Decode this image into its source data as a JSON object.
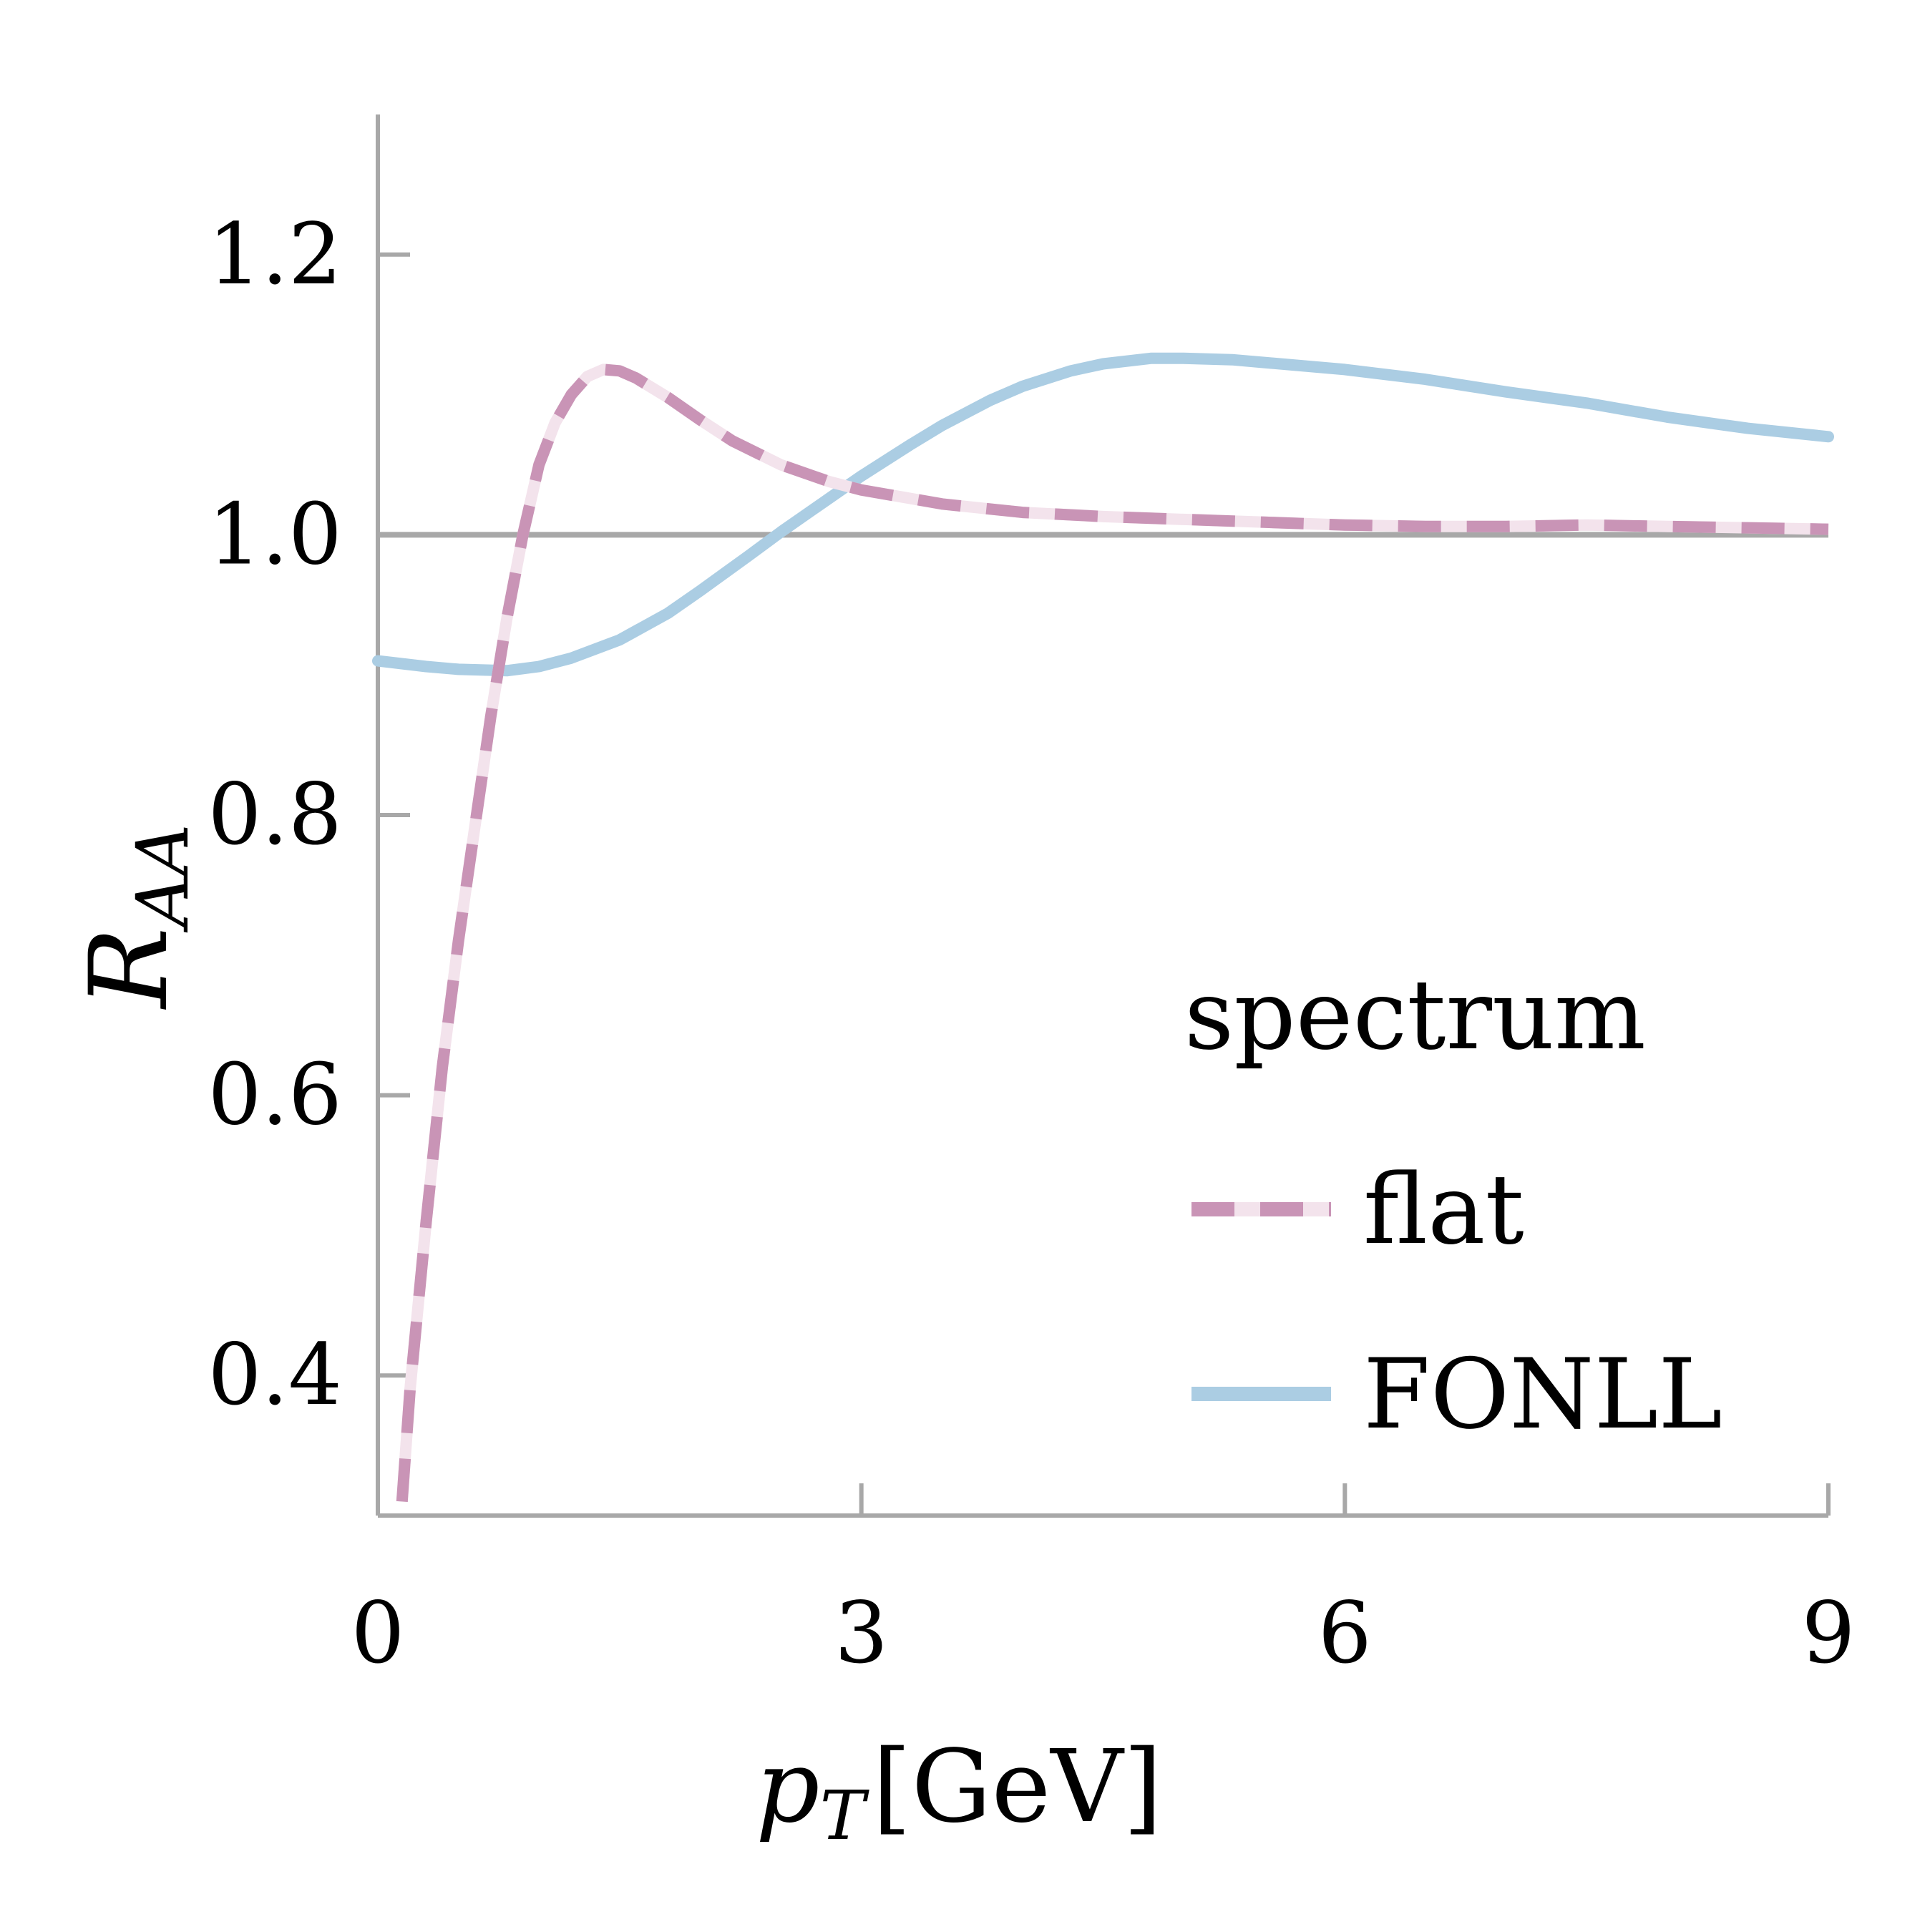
{
  "chart_data": {
    "type": "line",
    "xlabel": {
      "main": "p",
      "sub": "T",
      "unit": "[GeV]"
    },
    "ylabel": {
      "main": "R",
      "sub": "AA"
    },
    "xlim": [
      0,
      9
    ],
    "ylim": [
      0.3,
      1.3
    ],
    "xticks": [
      0,
      3,
      6,
      9
    ],
    "xtick_labels": [
      "0",
      "3",
      "6",
      "9"
    ],
    "yticks": [
      0.4,
      0.6,
      0.8,
      1.0,
      1.2
    ],
    "ytick_labels": [
      "0.4",
      "0.6",
      "0.8",
      "1.0",
      "1.2"
    ],
    "reference_line": 1.0,
    "grid": false,
    "legend": {
      "title": "spectrum",
      "position": "bottom-right"
    },
    "colors": {
      "axis": "#a8a8a8",
      "flat": "#c994b6",
      "flat_gap": "#f3e3ec",
      "fonll": "#abcde3"
    },
    "series": [
      {
        "name": "flat",
        "style": "dashed",
        "x": [
          0.15,
          0.2,
          0.3,
          0.4,
          0.5,
          0.6,
          0.7,
          0.8,
          0.9,
          1.0,
          1.1,
          1.2,
          1.3,
          1.4,
          1.5,
          1.6,
          1.8,
          2.0,
          2.2,
          2.5,
          2.8,
          3.0,
          3.5,
          4.0,
          4.5,
          5.0,
          5.5,
          6.0,
          6.5,
          7.0,
          7.5,
          8.0,
          8.5,
          9.0
        ],
        "y": [
          0.31,
          0.39,
          0.51,
          0.62,
          0.71,
          0.79,
          0.87,
          0.94,
          1.0,
          1.05,
          1.08,
          1.1,
          1.113,
          1.118,
          1.117,
          1.112,
          1.098,
          1.082,
          1.067,
          1.05,
          1.038,
          1.032,
          1.022,
          1.016,
          1.013,
          1.011,
          1.009,
          1.007,
          1.006,
          1.006,
          1.007,
          1.006,
          1.005,
          1.004
        ]
      },
      {
        "name": "FONLL",
        "style": "solid",
        "x": [
          0.0,
          0.3,
          0.5,
          0.8,
          1.0,
          1.2,
          1.5,
          1.8,
          2.0,
          2.3,
          2.5,
          2.8,
          3.0,
          3.3,
          3.5,
          3.8,
          4.0,
          4.3,
          4.5,
          4.8,
          5.0,
          5.3,
          5.5,
          6.0,
          6.5,
          7.0,
          7.5,
          8.0,
          8.5,
          9.0
        ],
        "y": [
          0.91,
          0.906,
          0.904,
          0.903,
          0.906,
          0.912,
          0.925,
          0.944,
          0.96,
          0.985,
          1.002,
          1.026,
          1.042,
          1.064,
          1.078,
          1.096,
          1.106,
          1.117,
          1.122,
          1.126,
          1.126,
          1.125,
          1.123,
          1.118,
          1.111,
          1.102,
          1.094,
          1.084,
          1.076,
          1.07
        ]
      }
    ]
  }
}
